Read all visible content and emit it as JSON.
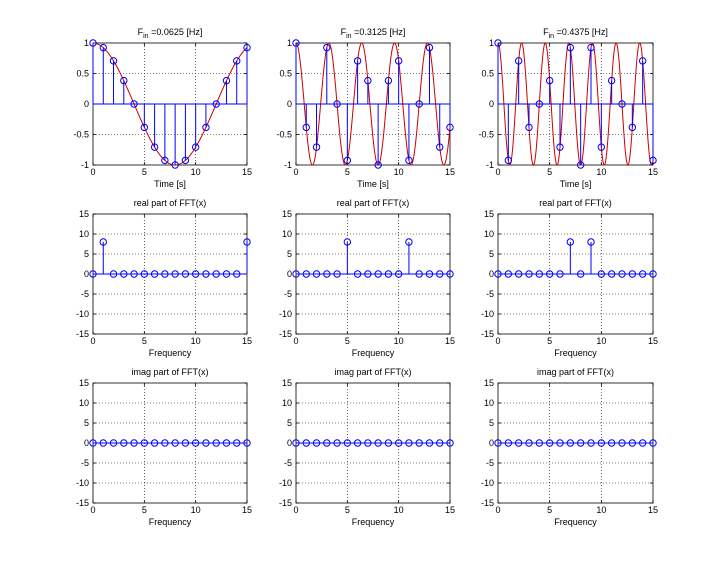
{
  "figure": {
    "background": "#ffffff"
  },
  "colors": {
    "stem": "#0000ff",
    "curve": "#cc0000",
    "axes": "#000000"
  },
  "chart_data": [
    {
      "type": "stem",
      "title": "F_in =0.0625 [Hz]",
      "title_base": "F",
      "title_sub": "in",
      "title_rest": " =0.0625 [Hz]",
      "xlabel": "Time [s]",
      "ylabel": "",
      "xlim": [
        0,
        15
      ],
      "ylim": [
        -1,
        1
      ],
      "xticks": [
        0,
        5,
        10,
        15
      ],
      "yticks": [
        -1,
        -0.5,
        0,
        0.5,
        1
      ],
      "grid": true,
      "x": [
        0,
        1,
        2,
        3,
        4,
        5,
        6,
        7,
        8,
        9,
        10,
        11,
        12,
        13,
        14,
        15
      ],
      "values": [
        1,
        0.924,
        0.707,
        0.383,
        0,
        -0.383,
        -0.707,
        -0.924,
        -1,
        -0.924,
        -0.707,
        -0.383,
        0,
        0.383,
        0.707,
        0.924
      ],
      "curve": {
        "frequency": 0.0625,
        "function": "cos"
      }
    },
    {
      "type": "stem",
      "title": "F_in =0.3125 [Hz]",
      "title_base": "F",
      "title_sub": "in",
      "title_rest": " =0.3125 [Hz]",
      "xlabel": "Time [s]",
      "ylabel": "",
      "xlim": [
        0,
        15
      ],
      "ylim": [
        -1,
        1
      ],
      "xticks": [
        0,
        5,
        10,
        15
      ],
      "yticks": [
        -1,
        -0.5,
        0,
        0.5,
        1
      ],
      "grid": true,
      "x": [
        0,
        1,
        2,
        3,
        4,
        5,
        6,
        7,
        8,
        9,
        10,
        11,
        12,
        13,
        14,
        15
      ],
      "values": [
        1,
        -0.383,
        -0.707,
        0.924,
        0,
        -0.924,
        0.707,
        0.383,
        -1,
        0.383,
        0.707,
        -0.924,
        0,
        0.924,
        -0.707,
        -0.383
      ],
      "curve": {
        "frequency": 0.3125,
        "function": "cos"
      }
    },
    {
      "type": "stem",
      "title": "F_in =0.4375 [Hz]",
      "title_base": "F",
      "title_sub": "in",
      "title_rest": " =0.4375 [Hz]",
      "xlabel": "Time [s]",
      "ylabel": "",
      "xlim": [
        0,
        15
      ],
      "ylim": [
        -1,
        1
      ],
      "xticks": [
        0,
        5,
        10,
        15
      ],
      "yticks": [
        -1,
        -0.5,
        0,
        0.5,
        1
      ],
      "grid": true,
      "x": [
        0,
        1,
        2,
        3,
        4,
        5,
        6,
        7,
        8,
        9,
        10,
        11,
        12,
        13,
        14,
        15
      ],
      "values": [
        1,
        -0.924,
        0.707,
        -0.383,
        0,
        0.383,
        -0.707,
        0.924,
        -1,
        0.924,
        -0.707,
        0.383,
        0,
        -0.383,
        0.707,
        -0.924
      ],
      "curve": {
        "frequency": 0.4375,
        "function": "cos"
      }
    },
    {
      "type": "stem",
      "title": "real part of FFT(x)",
      "xlabel": "Frequency",
      "ylabel": "",
      "xlim": [
        0,
        15
      ],
      "ylim": [
        -15,
        15
      ],
      "xticks": [
        0,
        5,
        10,
        15
      ],
      "yticks": [
        -15,
        -10,
        -5,
        0,
        5,
        10,
        15
      ],
      "grid": true,
      "x": [
        0,
        1,
        2,
        3,
        4,
        5,
        6,
        7,
        8,
        9,
        10,
        11,
        12,
        13,
        14,
        15
      ],
      "values": [
        0,
        8,
        0,
        0,
        0,
        0,
        0,
        0,
        0,
        0,
        0,
        0,
        0,
        0,
        0,
        8
      ]
    },
    {
      "type": "stem",
      "title": "real part of FFT(x)",
      "xlabel": "Frequency",
      "ylabel": "",
      "xlim": [
        0,
        15
      ],
      "ylim": [
        -15,
        15
      ],
      "xticks": [
        0,
        5,
        10,
        15
      ],
      "yticks": [
        -15,
        -10,
        -5,
        0,
        5,
        10,
        15
      ],
      "grid": true,
      "x": [
        0,
        1,
        2,
        3,
        4,
        5,
        6,
        7,
        8,
        9,
        10,
        11,
        12,
        13,
        14,
        15
      ],
      "values": [
        0,
        0,
        0,
        0,
        0,
        8,
        0,
        0,
        0,
        0,
        0,
        8,
        0,
        0,
        0,
        0
      ]
    },
    {
      "type": "stem",
      "title": "real part of FFT(x)",
      "xlabel": "Frequency",
      "ylabel": "",
      "xlim": [
        0,
        15
      ],
      "ylim": [
        -15,
        15
      ],
      "xticks": [
        0,
        5,
        10,
        15
      ],
      "yticks": [
        -15,
        -10,
        -5,
        0,
        5,
        10,
        15
      ],
      "grid": true,
      "x": [
        0,
        1,
        2,
        3,
        4,
        5,
        6,
        7,
        8,
        9,
        10,
        11,
        12,
        13,
        14,
        15
      ],
      "values": [
        0,
        0,
        0,
        0,
        0,
        0,
        0,
        8,
        0,
        8,
        0,
        0,
        0,
        0,
        0,
        0
      ]
    },
    {
      "type": "stem",
      "title": "imag part of FFT(x)",
      "xlabel": "Frequency",
      "ylabel": "",
      "xlim": [
        0,
        15
      ],
      "ylim": [
        -15,
        15
      ],
      "xticks": [
        0,
        5,
        10,
        15
      ],
      "yticks": [
        -15,
        -10,
        -5,
        0,
        5,
        10,
        15
      ],
      "grid": true,
      "x": [
        0,
        1,
        2,
        3,
        4,
        5,
        6,
        7,
        8,
        9,
        10,
        11,
        12,
        13,
        14,
        15
      ],
      "values": [
        0,
        0,
        0,
        0,
        0,
        0,
        0,
        0,
        0,
        0,
        0,
        0,
        0,
        0,
        0,
        0
      ]
    },
    {
      "type": "stem",
      "title": "imag part of FFT(x)",
      "xlabel": "Frequency",
      "ylabel": "",
      "xlim": [
        0,
        15
      ],
      "ylim": [
        -15,
        15
      ],
      "xticks": [
        0,
        5,
        10,
        15
      ],
      "yticks": [
        -15,
        -10,
        -5,
        0,
        5,
        10,
        15
      ],
      "grid": true,
      "x": [
        0,
        1,
        2,
        3,
        4,
        5,
        6,
        7,
        8,
        9,
        10,
        11,
        12,
        13,
        14,
        15
      ],
      "values": [
        0,
        0,
        0,
        0,
        0,
        0,
        0,
        0,
        0,
        0,
        0,
        0,
        0,
        0,
        0,
        0
      ]
    },
    {
      "type": "stem",
      "title": "imag part of FFT(x)",
      "xlabel": "Frequency",
      "ylabel": "",
      "xlim": [
        0,
        15
      ],
      "ylim": [
        -15,
        15
      ],
      "xticks": [
        0,
        5,
        10,
        15
      ],
      "yticks": [
        -15,
        -10,
        -5,
        0,
        5,
        10,
        15
      ],
      "grid": true,
      "x": [
        0,
        1,
        2,
        3,
        4,
        5,
        6,
        7,
        8,
        9,
        10,
        11,
        12,
        13,
        14,
        15
      ],
      "values": [
        0,
        0,
        0,
        0,
        0,
        0,
        0,
        0,
        0,
        0,
        0,
        0,
        0,
        0,
        0,
        0
      ]
    }
  ]
}
